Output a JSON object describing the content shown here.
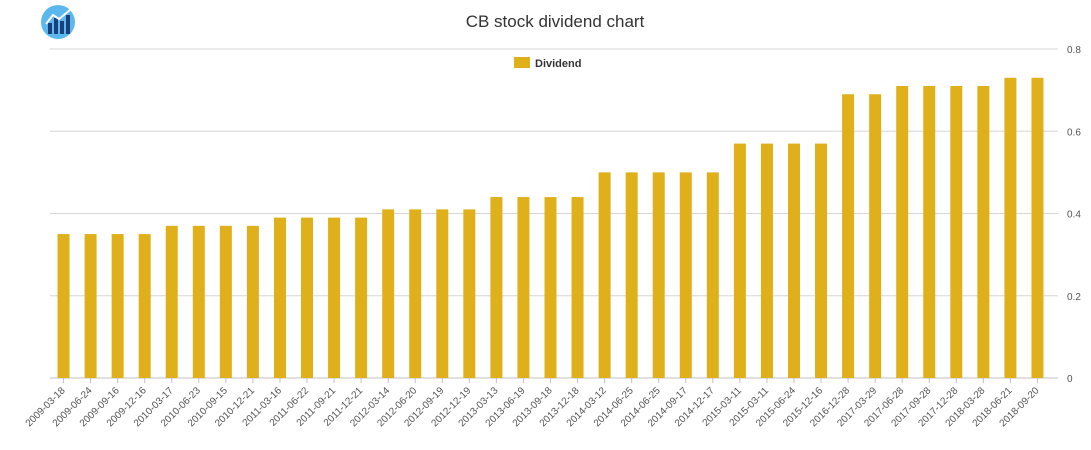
{
  "chart_data": {
    "type": "bar",
    "title": "CB stock dividend chart",
    "xlabel": "",
    "ylabel": "",
    "ylim": [
      0,
      0.8
    ],
    "yticks": [
      "0",
      "0.2",
      "0.4",
      "0.6",
      "0.8"
    ],
    "y_axis_side": "right",
    "legend_position": "top-center",
    "grid": true,
    "categories": [
      "2009-03-18",
      "2009-06-24",
      "2009-09-16",
      "2009-12-16",
      "2010-03-17",
      "2010-06-23",
      "2010-09-15",
      "2010-12-21",
      "2011-03-16",
      "2011-06-22",
      "2011-09-21",
      "2011-12-21",
      "2012-03-14",
      "2012-06-20",
      "2012-09-19",
      "2012-12-19",
      "2013-03-13",
      "2013-06-19",
      "2013-09-18",
      "2013-12-18",
      "2014-03-12",
      "2014-06-25",
      "2014-06-25",
      "2014-09-17",
      "2014-12-17",
      "2015-03-11",
      "2015-03-11",
      "2015-06-24",
      "2015-12-16",
      "2016-12-28",
      "2017-03-29",
      "2017-06-28",
      "2017-09-28",
      "2017-12-28",
      "2018-03-28",
      "2018-06-21",
      "2018-09-20"
    ],
    "series": [
      {
        "name": "Dividend",
        "color": "#e0b01a",
        "values": [
          0.35,
          0.35,
          0.35,
          0.35,
          0.37,
          0.37,
          0.37,
          0.37,
          0.39,
          0.39,
          0.39,
          0.39,
          0.41,
          0.41,
          0.41,
          0.41,
          0.44,
          0.44,
          0.44,
          0.44,
          0.5,
          0.5,
          0.5,
          0.5,
          0.5,
          0.57,
          0.57,
          0.57,
          0.57,
          0.69,
          0.69,
          0.71,
          0.71,
          0.71,
          0.71,
          0.73,
          0.73
        ]
      }
    ]
  },
  "logo": {
    "icon": "bar-chart-logo-icon",
    "color": "#1f7fd1"
  }
}
